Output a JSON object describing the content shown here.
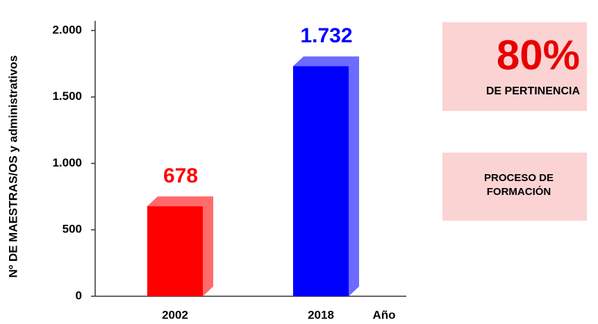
{
  "chart_data": {
    "type": "bar3d",
    "categories": [
      "2002",
      "2018"
    ],
    "values": [
      678,
      1732
    ],
    "value_labels": [
      "678",
      "1.732"
    ],
    "colors": [
      "#ff0000",
      "#0000ff"
    ],
    "side_colors": [
      "#ff6b6b",
      "#6b6bff"
    ],
    "y_label": "Nº DE MAESTRAS/OS y administrativos",
    "x_label": "Año",
    "ylim": [
      0,
      2000
    ],
    "yticks": [
      0,
      500,
      {
        "value": 1000,
        "label": "1.000"
      },
      {
        "value": 1500,
        "label": "1.500"
      },
      {
        "value": 2000,
        "label": "2.000"
      }
    ],
    "annotations": {
      "percent": "80%",
      "percent_caption": "DE PERTINENCIA",
      "process": "PROCESO DE FORMACIÓN"
    }
  }
}
